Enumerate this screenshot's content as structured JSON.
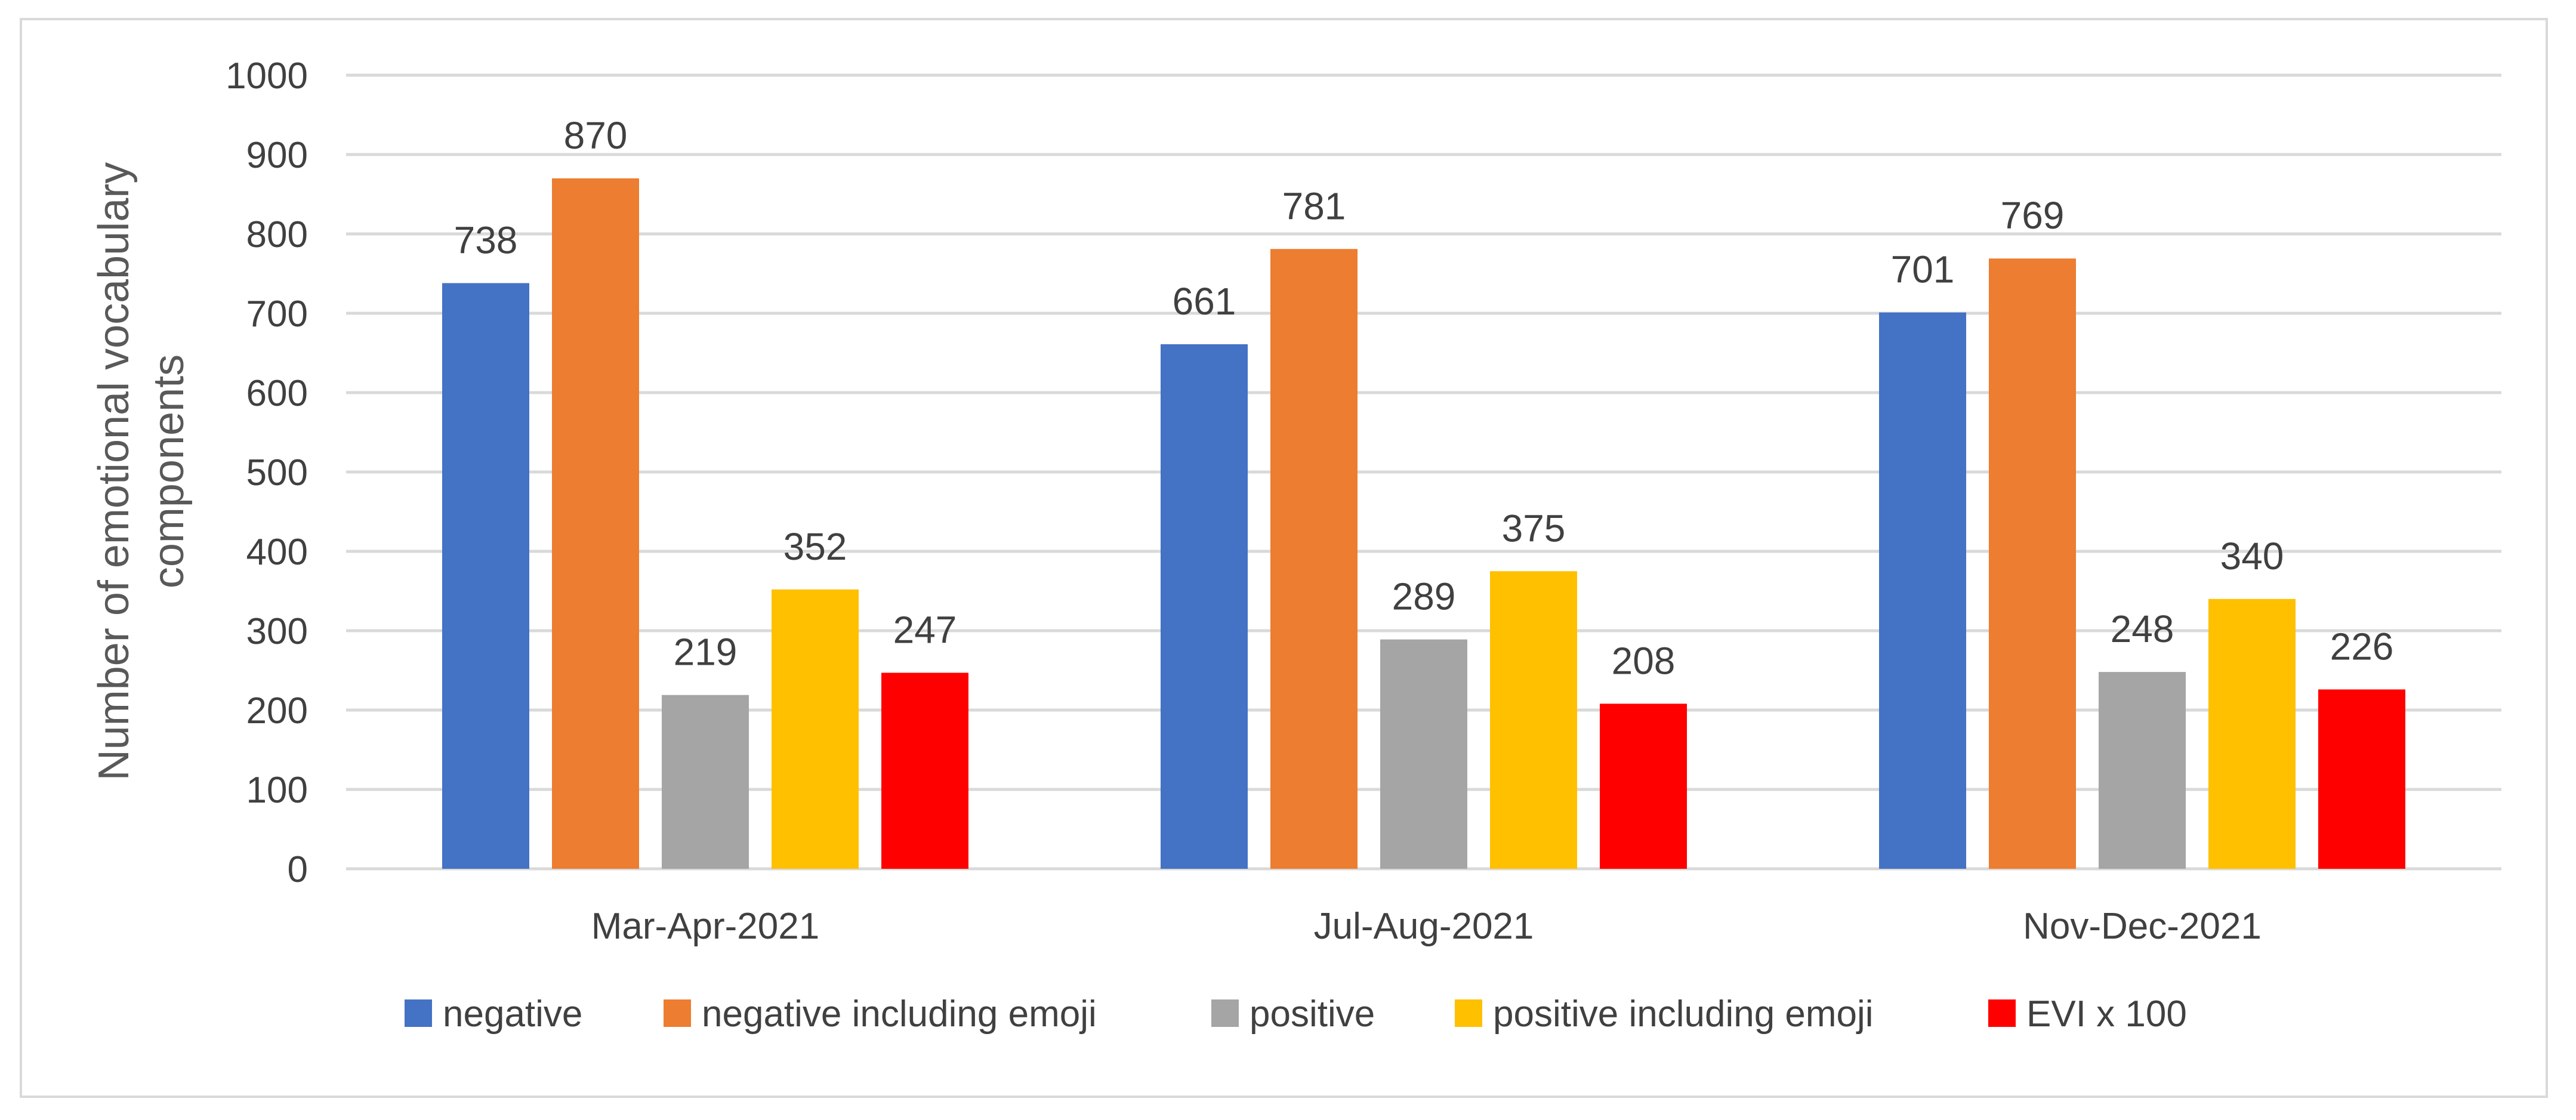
{
  "chart_data": {
    "type": "bar",
    "title": "",
    "xlabel": "",
    "ylabel": [
      "Number of emotional vocabulary",
      "components"
    ],
    "ylim": [
      0,
      1000
    ],
    "ytick_step": 100,
    "yticks": [
      "0",
      "100",
      "200",
      "300",
      "400",
      "500",
      "600",
      "700",
      "800",
      "900",
      "1000"
    ],
    "grid": true,
    "legend_position": "bottom",
    "categories": [
      "Mar-Apr-2021",
      "Jul-Aug-2021",
      "Nov-Dec-2021"
    ],
    "series": [
      {
        "name": "negative",
        "color": "#4472c4",
        "values": [
          738,
          661,
          701
        ]
      },
      {
        "name": "negative including emoji",
        "color": "#ed7d31",
        "values": [
          870,
          781,
          769
        ]
      },
      {
        "name": "positive",
        "color": "#a5a5a5",
        "values": [
          219,
          289,
          248
        ]
      },
      {
        "name": "positive including emoji",
        "color": "#ffc000",
        "values": [
          352,
          375,
          340
        ]
      },
      {
        "name": "EVI x 100",
        "color": "#ff0000",
        "values": [
          247,
          208,
          226
        ]
      }
    ],
    "colors": {
      "grid": "#d9d9d9",
      "text": "#404040",
      "axis_title": "#595959"
    }
  }
}
